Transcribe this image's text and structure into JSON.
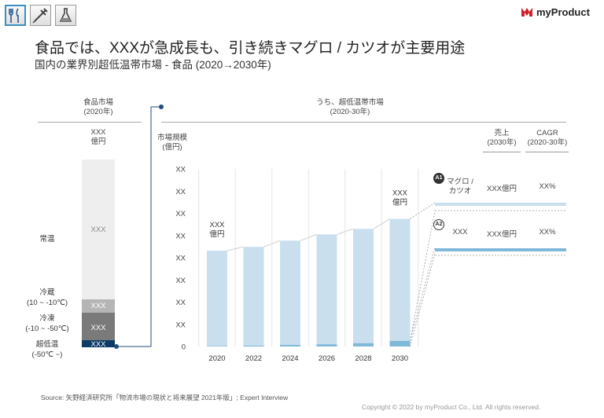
{
  "toolbar": {
    "items": [
      {
        "icon": "utensils-icon",
        "label": "食品"
      },
      {
        "icon": "syringe-icon",
        "label": "医薬"
      },
      {
        "icon": "flask-icon",
        "label": "化学"
      }
    ]
  },
  "brand": {
    "name": "myProduct",
    "color": "#d0202a"
  },
  "title": "食品では、XXXが急成長も、引き続きマグロ / カツオが主要用途",
  "subtitle": "国内の業界別超低温帯市場 - 食品 (2020→2030年)",
  "left_panel": {
    "header_line1": "食品市場",
    "header_line2": "(2020年)",
    "total_line1": "XXX",
    "total_line2": "億円",
    "categories": [
      {
        "name": "常温",
        "range": "",
        "value": "XXX",
        "color": "#eeeeee"
      },
      {
        "name": "冷蔵",
        "range": "(10 ~ -10℃)",
        "value": "XXX",
        "color": "#b5b5b5"
      },
      {
        "name": "冷凍",
        "range": "(-10 ~ -50℃)",
        "value": "XXX",
        "color": "#7a7a7a"
      },
      {
        "name": "超低温",
        "range": "(-50℃ ~)",
        "value": "XXX",
        "color": "#0d3a66"
      }
    ]
  },
  "right_panel": {
    "header_line1": "うち、超低温帯市場",
    "header_line2": "(2020-30年)",
    "ylabel_line1": "市場規模",
    "ylabel_line2": "(億円)"
  },
  "chart_data": {
    "type": "bar",
    "categories": [
      "2020",
      "2022",
      "2024",
      "2026",
      "2028",
      "2030"
    ],
    "series": [
      {
        "name": "マグロ / カツオ",
        "values": [
          43,
          44.5,
          47,
          49.5,
          51.5,
          55
        ],
        "color": "#c9dfee"
      },
      {
        "name": "XXX",
        "values": [
          0.2,
          0.4,
          0.7,
          1.0,
          1.5,
          2.5
        ],
        "color": "#7fb8d8"
      }
    ],
    "ytick_labels": [
      "0",
      "XX",
      "XX",
      "XX",
      "XX",
      "XX",
      "XX",
      "XX",
      "XX"
    ],
    "ylim": [
      0,
      80
    ],
    "annotations": [
      {
        "category": "2020",
        "line1": "XXX",
        "line2": "億円"
      },
      {
        "category": "2030",
        "line1": "XXX",
        "line2": "億円"
      }
    ]
  },
  "table": {
    "col_sales_line1": "売上",
    "col_sales_line2": "(2030年)",
    "col_cagr_line1": "CAGR",
    "col_cagr_line2": "(2020-30年)",
    "rows": [
      {
        "badge": "A1",
        "name_line1": "マグロ /",
        "name_line2": "カツオ",
        "sales": "XXX億円",
        "cagr": "XX%",
        "color": "#c9dfee"
      },
      {
        "badge": "A2",
        "name_line1": "XXX",
        "name_line2": "",
        "sales": "XXX億円",
        "cagr": "XX%",
        "color": "#7fb8d8"
      }
    ]
  },
  "footer": {
    "source": "Source: 矢野経済研究所「物流市場の現状と将来展望 2021年版」; Expert Interview",
    "copyright": "Copyright © 2022 by myProduct Co., Ltd. All rights reserved."
  }
}
